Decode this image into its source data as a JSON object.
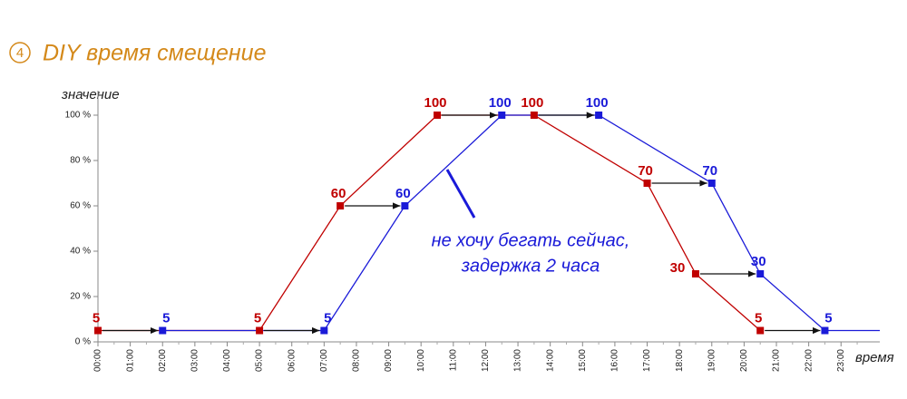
{
  "chart_data": {
    "type": "line",
    "step": "4",
    "title": "DIY время смещение",
    "y_label": "значение",
    "x_label": "время",
    "annotation": [
      "не хочу бегать сейчас,",
      "задержка 2 часа"
    ],
    "xlim": [
      0,
      24.2
    ],
    "ylim": [
      0,
      100
    ],
    "xticks": [
      {
        "value": 0,
        "label": "00:00"
      },
      {
        "value": 1,
        "label": "01:00"
      },
      {
        "value": 2,
        "label": "02:00"
      },
      {
        "value": 3,
        "label": "03:00"
      },
      {
        "value": 4,
        "label": "04:00"
      },
      {
        "value": 5,
        "label": "05:00"
      },
      {
        "value": 6,
        "label": "06:00"
      },
      {
        "value": 7,
        "label": "07:00"
      },
      {
        "value": 8,
        "label": "08:00"
      },
      {
        "value": 9,
        "label": "09:00"
      },
      {
        "value": 10,
        "label": "10:00"
      },
      {
        "value": 11,
        "label": "11:00"
      },
      {
        "value": 12,
        "label": "12:00"
      },
      {
        "value": 13,
        "label": "13:00"
      },
      {
        "value": 14,
        "label": "14:00"
      },
      {
        "value": 15,
        "label": "15:00"
      },
      {
        "value": 16,
        "label": "16:00"
      },
      {
        "value": 17,
        "label": "17:00"
      },
      {
        "value": 18,
        "label": "18:00"
      },
      {
        "value": 19,
        "label": "19:00"
      },
      {
        "value": 20,
        "label": "20:00"
      },
      {
        "value": 21,
        "label": "21:00"
      },
      {
        "value": 22,
        "label": "22:00"
      },
      {
        "value": 23,
        "label": "23:00"
      }
    ],
    "yticks": [
      {
        "value": 0,
        "label": "0 %"
      },
      {
        "value": 20,
        "label": "20 %"
      },
      {
        "value": 40,
        "label": "40 %"
      },
      {
        "value": 60,
        "label": "60 %"
      },
      {
        "value": 80,
        "label": "80 %"
      },
      {
        "value": 100,
        "label": "100 %"
      }
    ],
    "series": [
      {
        "color": "#c00000",
        "x": [
          0,
          5,
          7.5,
          10.5,
          13.5,
          17,
          18.5,
          20.5
        ],
        "values": [
          5,
          5,
          60,
          100,
          100,
          70,
          30,
          5
        ]
      },
      {
        "color": "#1a1ad8",
        "x": [
          2,
          7,
          9.5,
          12.5,
          15.5,
          19,
          20.5,
          22.5
        ],
        "values": [
          5,
          5,
          60,
          100,
          100,
          70,
          30,
          5
        ]
      }
    ]
  }
}
